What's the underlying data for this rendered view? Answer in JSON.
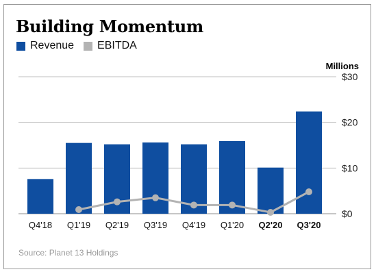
{
  "title": "Building Momentum",
  "legend": {
    "revenue_label": "Revenue",
    "ebitda_label": "EBITDA"
  },
  "source": "Source: Planet 13 Holdings",
  "colors": {
    "revenue": "#0f4ea0",
    "ebitda": "#b3b3b3",
    "grid": "#bfbfbf"
  },
  "chart_data": {
    "type": "bar",
    "categories": [
      "Q4'18",
      "Q1'19",
      "Q2'19",
      "Q3'19",
      "Q4'19",
      "Q1'20",
      "Q2'20",
      "Q3'20"
    ],
    "bold_categories": [
      "Q2'20",
      "Q3'20"
    ],
    "series": [
      {
        "name": "Revenue",
        "type": "bar",
        "values": [
          7.6,
          15.5,
          15.2,
          15.6,
          15.2,
          15.9,
          10.1,
          22.4
        ]
      },
      {
        "name": "EBITDA",
        "type": "line",
        "values": [
          null,
          0.9,
          2.6,
          3.5,
          1.9,
          1.9,
          0.3,
          4.8
        ]
      }
    ],
    "ylabel": "Millions",
    "ylim": [
      0,
      30
    ],
    "yticks": [
      0,
      10,
      20,
      30
    ],
    "ytick_labels": [
      "$0",
      "$10",
      "$20",
      "$30"
    ],
    "y_axis_side": "right",
    "legend_position": "top-left",
    "grid": true
  }
}
